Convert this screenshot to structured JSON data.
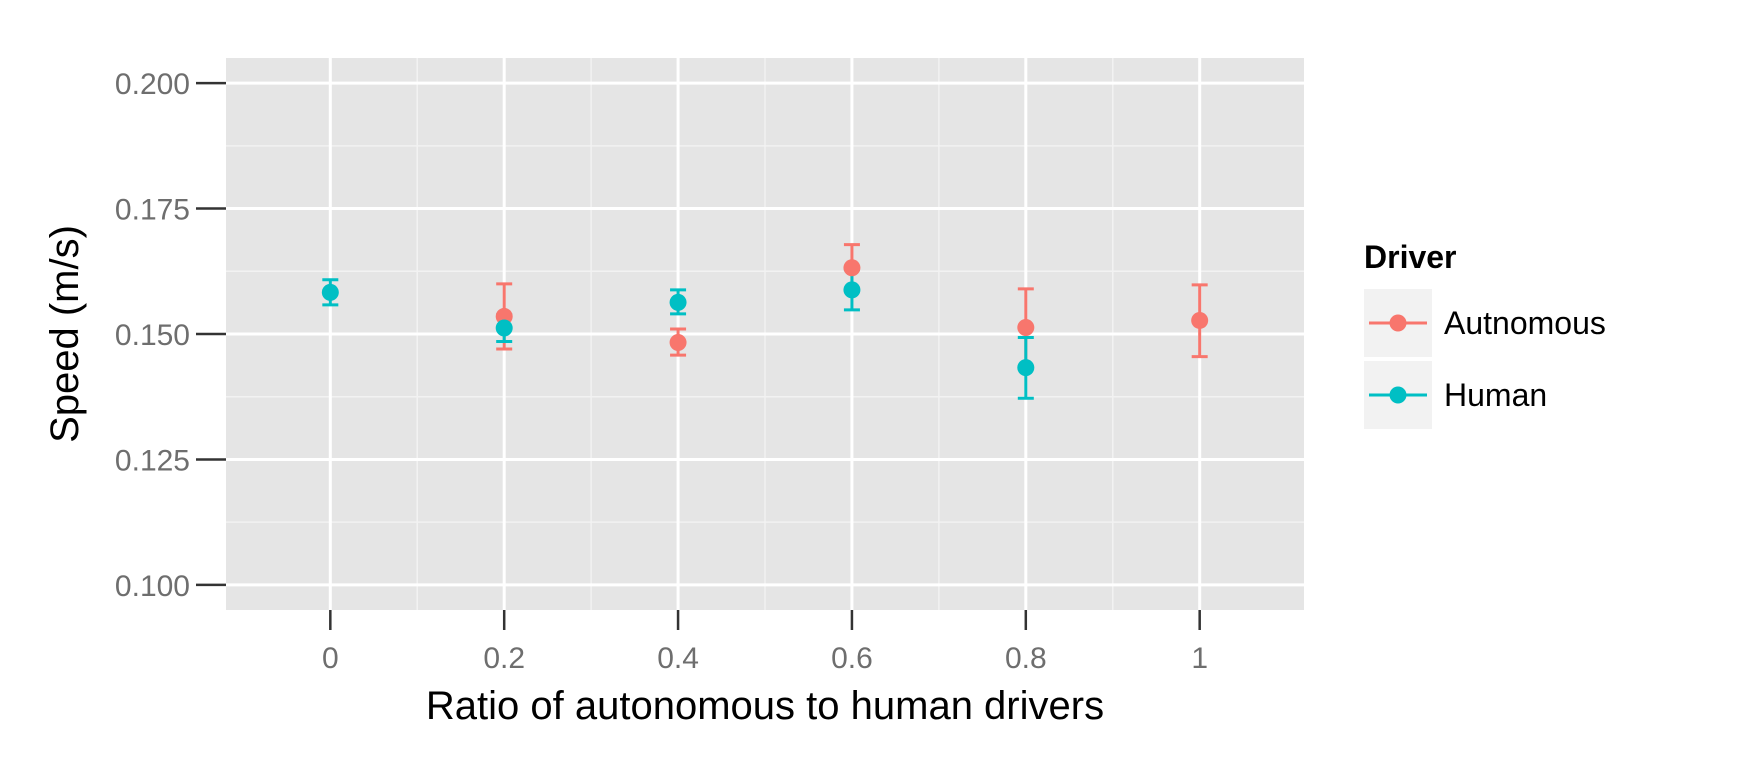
{
  "chart_data": {
    "type": "scatter",
    "xlabel": "Ratio of autonomous to human drivers",
    "ylabel": "Speed (m/s)",
    "xlim": [
      -0.12,
      1.12
    ],
    "ylim": [
      0.095,
      0.205
    ],
    "x_ticks": [
      {
        "value": 0,
        "label": "0"
      },
      {
        "value": 0.2,
        "label": "0.2"
      },
      {
        "value": 0.4,
        "label": "0.4"
      },
      {
        "value": 0.6,
        "label": "0.6"
      },
      {
        "value": 0.8,
        "label": "0.8"
      },
      {
        "value": 1,
        "label": "1"
      }
    ],
    "y_ticks": [
      {
        "value": 0.1,
        "label": "0.100"
      },
      {
        "value": 0.125,
        "label": "0.125"
      },
      {
        "value": 0.15,
        "label": "0.150"
      },
      {
        "value": 0.175,
        "label": "0.175"
      },
      {
        "value": 0.2,
        "label": "0.200"
      }
    ],
    "grid": true,
    "legend": {
      "title": "Driver",
      "placement": "right"
    },
    "series": [
      {
        "name": "Autnomous",
        "color": "#F8766D",
        "points": [
          {
            "x": 0.2,
            "y": 0.1535,
            "ymin": 0.147,
            "ymax": 0.16
          },
          {
            "x": 0.4,
            "y": 0.1483,
            "ymin": 0.1458,
            "ymax": 0.151
          },
          {
            "x": 0.6,
            "y": 0.1632,
            "ymin": 0.1585,
            "ymax": 0.1678
          },
          {
            "x": 0.8,
            "y": 0.1513,
            "ymin": 0.1435,
            "ymax": 0.159
          },
          {
            "x": 1.0,
            "y": 0.1527,
            "ymin": 0.1455,
            "ymax": 0.1598
          }
        ]
      },
      {
        "name": "Human",
        "color": "#00BFC4",
        "points": [
          {
            "x": 0.0,
            "y": 0.1583,
            "ymin": 0.1558,
            "ymax": 0.1608
          },
          {
            "x": 0.2,
            "y": 0.1512,
            "ymin": 0.1485,
            "ymax": 0.1538
          },
          {
            "x": 0.4,
            "y": 0.1563,
            "ymin": 0.154,
            "ymax": 0.1588
          },
          {
            "x": 0.6,
            "y": 0.1588,
            "ymin": 0.1548,
            "ymax": 0.1628
          },
          {
            "x": 0.8,
            "y": 0.1433,
            "ymin": 0.1372,
            "ymax": 0.1493
          }
        ]
      }
    ]
  }
}
